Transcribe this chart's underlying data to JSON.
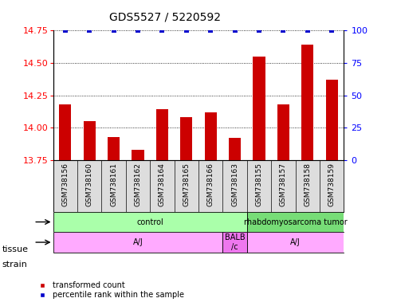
{
  "title": "GDS5527 / 5220592",
  "samples": [
    "GSM738156",
    "GSM738160",
    "GSM738161",
    "GSM738162",
    "GSM738164",
    "GSM738165",
    "GSM738166",
    "GSM738163",
    "GSM738155",
    "GSM738157",
    "GSM738158",
    "GSM738159"
  ],
  "transformed_counts": [
    14.18,
    14.05,
    13.93,
    13.83,
    14.14,
    14.08,
    14.12,
    13.92,
    14.55,
    14.18,
    14.64,
    14.37
  ],
  "percentile_ranks": [
    100,
    100,
    100,
    100,
    100,
    100,
    100,
    100,
    100,
    100,
    100,
    100
  ],
  "ylim_left": [
    13.75,
    14.75
  ],
  "ylim_right": [
    0,
    100
  ],
  "yticks_left": [
    13.75,
    14.0,
    14.25,
    14.5,
    14.75
  ],
  "yticks_right": [
    0,
    25,
    50,
    75,
    100
  ],
  "bar_color": "#cc0000",
  "dot_color": "#0000cc",
  "tissue_groups": [
    {
      "label": "control",
      "start": 0,
      "end": 8,
      "color": "#aaffaa"
    },
    {
      "label": "rhabdomyosarcoma tumor",
      "start": 8,
      "end": 12,
      "color": "#77dd77"
    }
  ],
  "strain_groups": [
    {
      "label": "A/J",
      "start": 0,
      "end": 7,
      "color": "#ffaaff"
    },
    {
      "label": "BALB\n/c",
      "start": 7,
      "end": 8,
      "color": "#ee77ee"
    },
    {
      "label": "A/J",
      "start": 8,
      "end": 12,
      "color": "#ffaaff"
    }
  ],
  "bg_color": "#ffffff",
  "bar_bottom": 13.75,
  "sample_label_bg": "#dddddd",
  "tissue_label": "tissue",
  "strain_label": "strain",
  "legend": [
    {
      "label": "transformed count",
      "color": "#cc0000"
    },
    {
      "label": "percentile rank within the sample",
      "color": "#0000cc"
    }
  ]
}
